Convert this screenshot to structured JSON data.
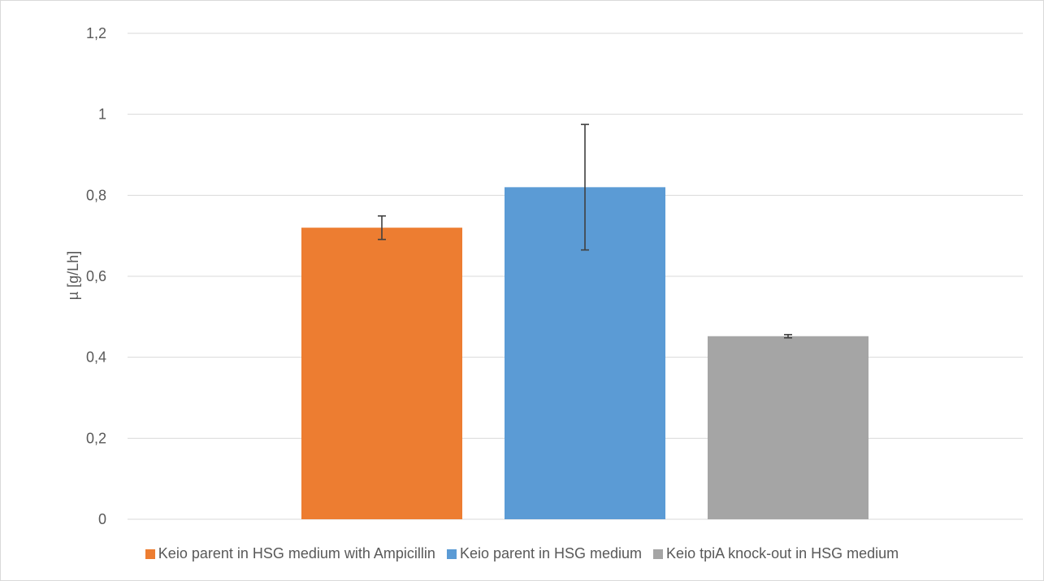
{
  "chart_data": {
    "type": "bar",
    "title": "",
    "xlabel": "",
    "ylabel": "µ [g/Lh]",
    "ylim": [
      0,
      1.2
    ],
    "yticks": [
      "0",
      "0,2",
      "0,4",
      "0,6",
      "0,8",
      "1",
      "1,2"
    ],
    "ytick_values": [
      0,
      0.2,
      0.4,
      0.6,
      0.8,
      1.0,
      1.2
    ],
    "grid": true,
    "legend_position": "bottom",
    "series": [
      {
        "name": "Keio parent in HSG medium with Ampicillin",
        "value": 0.72,
        "error": 0.029,
        "color": "#ED7D31"
      },
      {
        "name": "Keio parent in HSG medium",
        "value": 0.82,
        "error": 0.155,
        "color": "#5B9BD5"
      },
      {
        "name": "Keio tpiA knock-out in HSG medium",
        "value": 0.452,
        "error": 0.004,
        "color": "#A5A5A5"
      }
    ]
  }
}
